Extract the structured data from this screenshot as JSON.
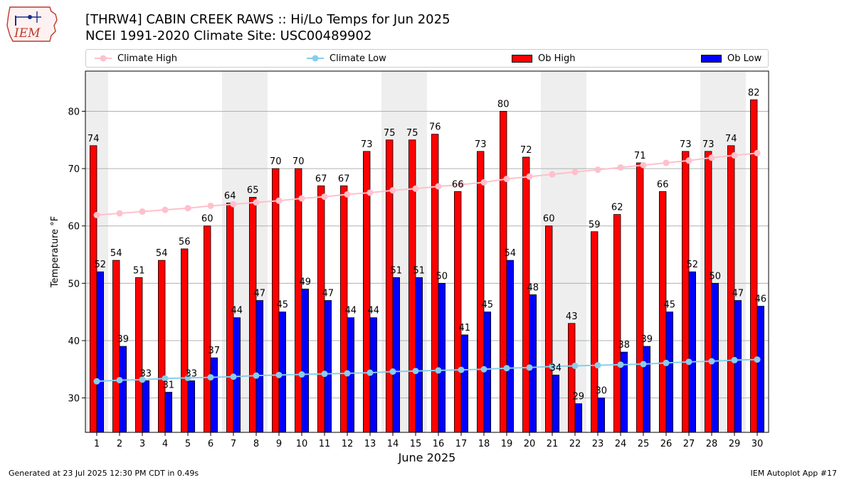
{
  "header": {
    "title_line1": "[THRW4] CABIN CREEK RAWS :: Hi/Lo Temps for Jun 2025",
    "title_line2": "NCEI 1991-2020 Climate Site: USC00489902",
    "logo_text": "IEM"
  },
  "legend": {
    "placement": "top",
    "items": [
      {
        "label": "Climate High",
        "color": "#ffc0cb"
      },
      {
        "label": "Climate Low",
        "color": "#87ceeb"
      },
      {
        "label": "Ob High",
        "color": "#ff0000"
      },
      {
        "label": "Ob Low",
        "color": "#0000ff"
      }
    ]
  },
  "footer": {
    "left": "Generated at 23 Jul 2025 12:30 PM CDT in 0.49s",
    "right": "IEM Autoplot App #17"
  },
  "chart_data": {
    "type": "bar",
    "xlabel": "June 2025",
    "ylabel": "Temperature $^\\circ$F",
    "ylim": [
      24,
      87
    ],
    "yticks": [
      30,
      40,
      50,
      60,
      70,
      80
    ],
    "grid": true,
    "weekend_shading": [
      [
        1,
        1
      ],
      [
        7,
        8
      ],
      [
        14,
        15
      ],
      [
        21,
        22
      ],
      [
        28,
        29
      ]
    ],
    "categories": [
      "1",
      "2",
      "3",
      "4",
      "5",
      "6",
      "7",
      "8",
      "9",
      "10",
      "11",
      "12",
      "13",
      "14",
      "15",
      "16",
      "17",
      "18",
      "19",
      "20",
      "21",
      "22",
      "23",
      "24",
      "25",
      "26",
      "27",
      "28",
      "29",
      "30"
    ],
    "series": [
      {
        "name": "Ob High",
        "kind": "bar",
        "color": "#ff0000",
        "values": [
          74,
          54,
          51,
          54,
          56,
          60,
          64,
          65,
          70,
          70,
          67,
          67,
          73,
          75,
          75,
          76,
          66,
          73,
          80,
          72,
          60,
          43,
          59,
          62,
          71,
          66,
          73,
          73,
          74,
          82
        ]
      },
      {
        "name": "Ob Low",
        "kind": "bar",
        "color": "#0000ff",
        "values": [
          52,
          39,
          33,
          31,
          33,
          37,
          44,
          47,
          45,
          49,
          47,
          44,
          44,
          51,
          51,
          50,
          41,
          45,
          54,
          48,
          34,
          29,
          30,
          38,
          39,
          45,
          52,
          50,
          47,
          46
        ]
      },
      {
        "name": "Climate High",
        "kind": "line",
        "color": "#ffc0cb",
        "values": [
          61.9,
          62.2,
          62.5,
          62.8,
          63.1,
          63.5,
          63.8,
          64.1,
          64.4,
          64.8,
          65.1,
          65.5,
          65.8,
          66.2,
          66.5,
          66.9,
          67.2,
          67.6,
          68.2,
          68.6,
          69.0,
          69.4,
          69.8,
          70.2,
          70.6,
          71.0,
          71.4,
          71.9,
          72.3,
          72.7
        ]
      },
      {
        "name": "Climate Low",
        "kind": "line",
        "color": "#87ceeb",
        "values": [
          32.9,
          33.1,
          33.2,
          33.4,
          33.5,
          33.6,
          33.7,
          33.9,
          34.0,
          34.1,
          34.2,
          34.3,
          34.4,
          34.6,
          34.7,
          34.8,
          34.9,
          35.0,
          35.2,
          35.3,
          35.5,
          35.6,
          35.7,
          35.8,
          35.9,
          36.1,
          36.3,
          36.4,
          36.6,
          36.7
        ]
      }
    ]
  }
}
